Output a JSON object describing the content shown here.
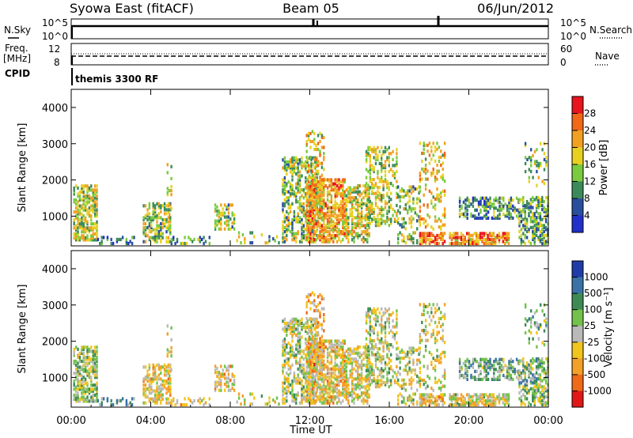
{
  "header": {
    "station": "Syowa East (fitACF)",
    "beam": "Beam 05",
    "date": "06/Jun/2012"
  },
  "panel_labels": {
    "nsky": "N.Sky",
    "nsearch": "N.Search",
    "freq_line1": "Freq.",
    "freq_line2": "[MHz]",
    "nave": "Nave",
    "cpid_label": "CPID",
    "cpid_value": "themis 3300 RF",
    "noise_left_top": "10^5",
    "noise_left_bottom": "10^0",
    "noise_right_top": "10^5",
    "noise_right_bottom": "10^0",
    "freq_left_top": "12",
    "freq_left_bottom": "8",
    "nave_right_top": "60",
    "nave_right_bottom": "0"
  },
  "colorbars": {
    "power": {
      "label": "Power [dB]",
      "ticks": [
        "28",
        "24",
        "20",
        "16",
        "12",
        "8",
        "4"
      ],
      "colors": [
        "#e8141e",
        "#f06818",
        "#f2a022",
        "#e8d020",
        "#7acb3e",
        "#3c8a5a",
        "#2a4e9e",
        "#2030c8"
      ]
    },
    "velocity": {
      "label": "Velocity [m s⁻¹]",
      "ticks": [
        "1000",
        "500",
        "100",
        "25",
        "-25",
        "-100",
        "-500",
        "-1000"
      ],
      "colors": [
        "#1f3ca8",
        "#3a72a8",
        "#3e8a55",
        "#73c24c",
        "#b9b9b9",
        "#f2c41e",
        "#f2a028",
        "#ee6a18",
        "#e01818"
      ]
    }
  },
  "chart_data": [
    {
      "type": "line",
      "name": "noise",
      "ylabel_left": "N.Sky",
      "ylabel_right": "N.Search",
      "x_range_hours": [
        0,
        24
      ],
      "y_range_log10": [
        0,
        5
      ],
      "sky_level_log10": 4.5,
      "spikes_hours": [
        11.7,
        11.8,
        18.5
      ]
    },
    {
      "type": "line",
      "name": "frequency-nave",
      "ylabel_left": "Freq. [MHz]",
      "ylabel_right": "Nave",
      "freq_mhz": 11.6,
      "nave": 28
    },
    {
      "type": "heatmap",
      "name": "power",
      "xlabel": "",
      "ylabel": "Slant Range [km]",
      "x_range_hours": [
        0,
        24
      ],
      "y_range_km": [
        180,
        4500
      ],
      "y_ticks": [
        1000,
        2000,
        3000,
        4000
      ],
      "colorbar": "Power [dB]"
    },
    {
      "type": "heatmap",
      "name": "velocity",
      "xlabel": "Time UT",
      "ylabel": "Slant Range [km]",
      "x_range_hours": [
        0,
        24
      ],
      "x_ticks": [
        "00:00",
        "04:00",
        "08:00",
        "12:00",
        "16:00",
        "20:00",
        "00:00"
      ],
      "y_range_km": [
        180,
        4500
      ],
      "y_ticks": [
        1000,
        2000,
        3000,
        4000
      ],
      "colorbar": "Velocity [m s⁻¹]"
    }
  ]
}
